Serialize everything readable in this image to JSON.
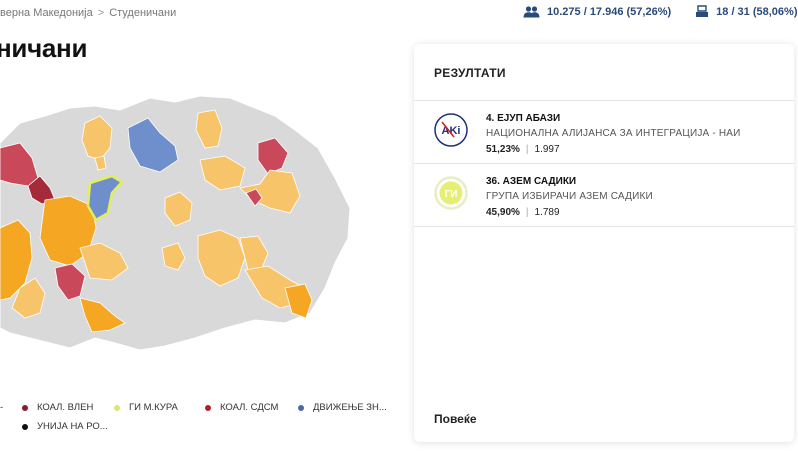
{
  "breadcrumb": {
    "parent": "верна Македонија",
    "separator": ">",
    "current": "Студеничани"
  },
  "stats": {
    "voters": "10.275 / 17.946 (57,26%)",
    "stations": "18 / 31 (58,06%)"
  },
  "page": {
    "title": "ничани"
  },
  "legend": {
    "items": [
      {
        "label": "-",
        "color": "#a52a3a"
      },
      {
        "label": "КОАЛ. ВЛЕН",
        "color": "#8a1c2c"
      },
      {
        "label": "ГИ М.КУРА",
        "color": "#d9e86a"
      },
      {
        "label": "КОАЛ. СДСМ",
        "color": "#b02020"
      },
      {
        "label": "ДВИЖЕЊЕ ЗН...",
        "color": "#4a6aa8"
      },
      {
        "label": "УНИЈА НА РО...",
        "color": "#111111"
      }
    ]
  },
  "results": {
    "title": "РЕЗУЛТАТИ",
    "candidates": [
      {
        "name": "4. ЕЈУП АБАЗИ",
        "party": "НАЦИОНАЛНА АЛИЈАНСА ЗА ИНТЕГРАЦИЈА - НАИ",
        "percent": "51,23%",
        "votes": "1.997",
        "logo_text": "AKi"
      },
      {
        "name": "36. АЗЕМ САДИКИ",
        "party": "ГРУПА ИЗБИРАЧИ АЗЕМ САДИКИ",
        "percent": "45,90%",
        "votes": "1.789",
        "logo_text": "ГИ"
      }
    ],
    "more_label": "Повеќе"
  },
  "colors": {
    "accent": "#2a4a7a",
    "map_default": "#d9d9d9",
    "map_orange": "#f5a623",
    "map_light_orange": "#f8c46a",
    "map_red": "#c9495a",
    "map_dark_red": "#a52a3a",
    "map_blue": "#6f8fcc",
    "map_highlight": "#e2ef5a"
  }
}
